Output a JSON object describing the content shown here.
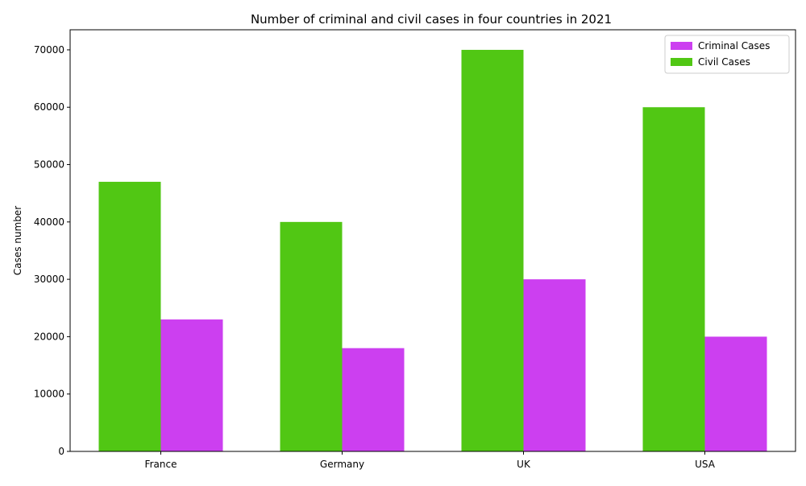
{
  "chart_data": {
    "type": "bar",
    "title": "Number of criminal and civil cases in four countries in 2021",
    "xlabel": "",
    "ylabel": "Cases number",
    "categories": [
      "France",
      "Germany",
      "UK",
      "USA"
    ],
    "series": [
      {
        "name": "Criminal Cases",
        "values": [
          23000,
          18000,
          30000,
          20000
        ],
        "color": "#cc3ff0"
      },
      {
        "name": "Civil Cases",
        "values": [
          47000,
          40000,
          70000,
          60000
        ],
        "color": "#51c714"
      }
    ],
    "bar_order": [
      "Civil Cases",
      "Criminal Cases"
    ],
    "ylim": [
      0,
      73500
    ],
    "yticks": [
      0,
      10000,
      20000,
      30000,
      40000,
      50000,
      60000,
      70000
    ],
    "legend_position": "top-right",
    "grid": false
  }
}
